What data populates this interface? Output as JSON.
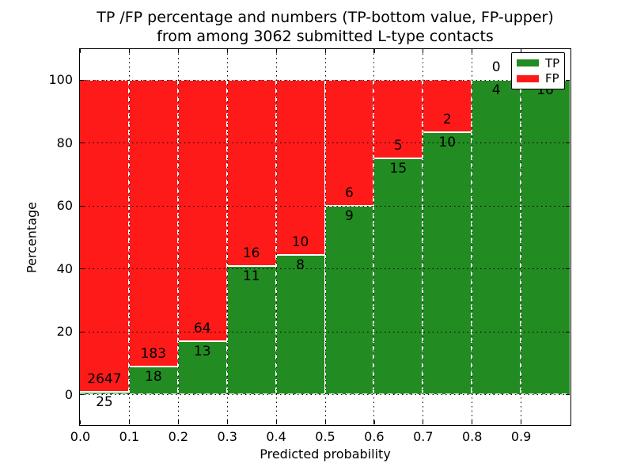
{
  "chart_data": {
    "type": "bar",
    "stacked": true,
    "title": "TP /FP percentage and numbers (TP-bottom value, FP-upper) from among 3062 submitted L-type contacts",
    "title_line1": "TP /FP percentage and numbers (TP-bottom value, FP-upper)",
    "title_line2": "from among 3062 submitted L-type contacts",
    "xlabel": "Predicted probability",
    "ylabel": "Percentage",
    "total_contacts": 3062,
    "bin_width": 0.1,
    "bin_starts": [
      0.0,
      0.1,
      0.2,
      0.3,
      0.4,
      0.5,
      0.6,
      0.7,
      0.8,
      0.9
    ],
    "series": [
      {
        "name": "TP",
        "color": "#228b22",
        "counts": [
          25,
          18,
          13,
          11,
          8,
          9,
          15,
          10,
          4,
          16
        ]
      },
      {
        "name": "FP",
        "color": "#ff1a1a",
        "counts": [
          2647,
          183,
          64,
          16,
          10,
          6,
          5,
          2,
          0,
          0
        ]
      }
    ],
    "tp_percent": [
      0.94,
      8.96,
      16.88,
      40.74,
      44.44,
      60.0,
      75.0,
      83.33,
      100.0,
      100.0
    ],
    "x_ticks": [
      0.0,
      0.1,
      0.2,
      0.3,
      0.4,
      0.5,
      0.6,
      0.7,
      0.8,
      0.9
    ],
    "x_tick_labels": [
      "0.0",
      "0.1",
      "0.2",
      "0.3",
      "0.4",
      "0.5",
      "0.6",
      "0.7",
      "0.8",
      "0.9"
    ],
    "y_ticks": [
      0,
      20,
      40,
      60,
      80,
      100
    ],
    "y_tick_labels": [
      "0",
      "20",
      "40",
      "60",
      "80",
      "100"
    ],
    "xlim": [
      0.0,
      1.0
    ],
    "ylim": [
      -9.5,
      109.75
    ],
    "grid": true,
    "legend_position": "upper right",
    "legend": [
      {
        "label": "TP",
        "color": "#228b22"
      },
      {
        "label": "FP",
        "color": "#ff1a1a"
      }
    ]
  }
}
